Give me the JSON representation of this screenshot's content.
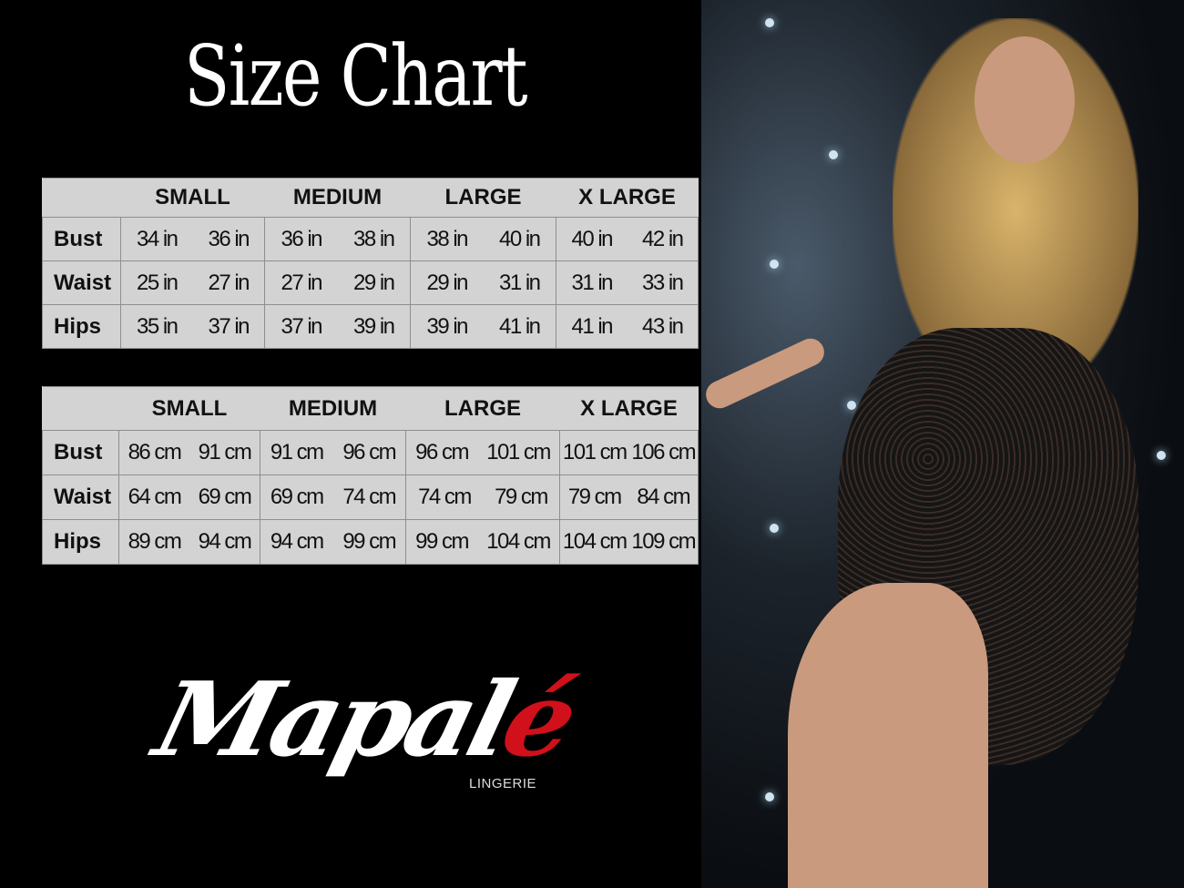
{
  "title": "Size Chart",
  "tables": [
    {
      "headers": [
        "",
        "SMALL",
        "MEDIUM",
        "LARGE",
        "X LARGE"
      ],
      "rows": [
        {
          "label": "Bust",
          "values": [
            [
              "34 in",
              "36 in"
            ],
            [
              "36 in",
              "38 in"
            ],
            [
              "38 in",
              "40 in"
            ],
            [
              "40 in",
              "42 in"
            ]
          ]
        },
        {
          "label": "Waist",
          "values": [
            [
              "25 in",
              "27 in"
            ],
            [
              "27 in",
              "29 in"
            ],
            [
              "29 in",
              "31 in"
            ],
            [
              "31 in",
              "33 in"
            ]
          ]
        },
        {
          "label": "Hips",
          "values": [
            [
              "35 in",
              "37 in"
            ],
            [
              "37 in",
              "39 in"
            ],
            [
              "39 in",
              "41 in"
            ],
            [
              "41 in",
              "43 in"
            ]
          ]
        }
      ]
    },
    {
      "headers": [
        "",
        "SMALL",
        "MEDIUM",
        "LARGE",
        "X LARGE"
      ],
      "rows": [
        {
          "label": "Bust",
          "values": [
            [
              "86 cm",
              "91 cm"
            ],
            [
              "91 cm",
              "96 cm"
            ],
            [
              "96 cm",
              "101 cm"
            ],
            [
              "101 cm",
              "106 cm"
            ]
          ]
        },
        {
          "label": "Waist",
          "values": [
            [
              "64 cm",
              "69 cm"
            ],
            [
              "69 cm",
              "74 cm"
            ],
            [
              "74 cm",
              "79  cm"
            ],
            [
              "79 cm",
              "84 cm"
            ]
          ]
        },
        {
          "label": "Hips",
          "values": [
            [
              "89 cm",
              "94 cm"
            ],
            [
              "94 cm",
              "99 cm"
            ],
            [
              "99 cm",
              "104 cm"
            ],
            [
              "104 cm",
              "109 cm"
            ]
          ]
        }
      ]
    }
  ],
  "logo": {
    "script_main": "Mapal",
    "script_accent": "é",
    "subtitle": "LINGERIE",
    "accent_color": "#d0101a"
  },
  "colors": {
    "background": "#000000",
    "table_fill": "#d3d3d3",
    "table_border": "#8e8e8e"
  }
}
